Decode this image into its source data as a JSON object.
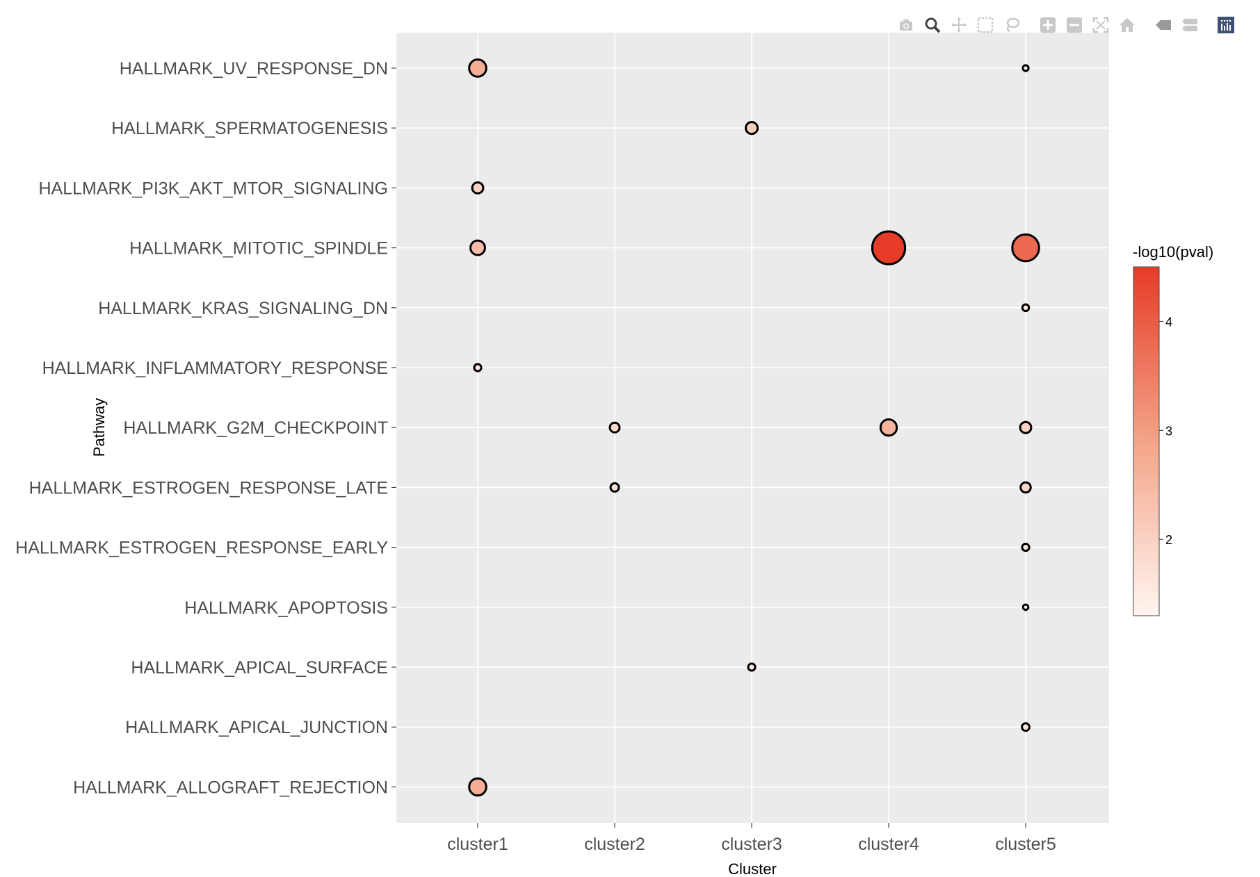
{
  "chart_data": {
    "type": "scatter",
    "subtype": "bubble",
    "xlabel": "Cluster",
    "ylabel": "Pathway",
    "categories_x": [
      "cluster1",
      "cluster2",
      "cluster3",
      "cluster4",
      "cluster5"
    ],
    "categories_y": [
      "HALLMARK_UV_RESPONSE_DN",
      "HALLMARK_SPERMATOGENESIS",
      "HALLMARK_PI3K_AKT_MTOR_SIGNALING",
      "HALLMARK_MITOTIC_SPINDLE",
      "HALLMARK_KRAS_SIGNALING_DN",
      "HALLMARK_INFLAMMATORY_RESPONSE",
      "HALLMARK_G2M_CHECKPOINT",
      "HALLMARK_ESTROGEN_RESPONSE_LATE",
      "HALLMARK_ESTROGEN_RESPONSE_EARLY",
      "HALLMARK_APOPTOSIS",
      "HALLMARK_APICAL_SURFACE",
      "HALLMARK_APICAL_JUNCTION",
      "HALLMARK_ALLOGRAFT_REJECTION"
    ],
    "points": [
      {
        "cluster": "cluster1",
        "pathway": "HALLMARK_UV_RESPONSE_DN",
        "neglog10p": 2.7
      },
      {
        "cluster": "cluster5",
        "pathway": "HALLMARK_UV_RESPONSE_DN",
        "neglog10p": 1.4
      },
      {
        "cluster": "cluster3",
        "pathway": "HALLMARK_SPERMATOGENESIS",
        "neglog10p": 2.1
      },
      {
        "cluster": "cluster1",
        "pathway": "HALLMARK_PI3K_AKT_MTOR_SIGNALING",
        "neglog10p": 2.0
      },
      {
        "cluster": "cluster1",
        "pathway": "HALLMARK_MITOTIC_SPINDLE",
        "neglog10p": 2.4
      },
      {
        "cluster": "cluster4",
        "pathway": "HALLMARK_MITOTIC_SPINDLE",
        "neglog10p": 4.5
      },
      {
        "cluster": "cluster5",
        "pathway": "HALLMARK_MITOTIC_SPINDLE",
        "neglog10p": 3.8
      },
      {
        "cluster": "cluster5",
        "pathway": "HALLMARK_KRAS_SIGNALING_DN",
        "neglog10p": 1.5
      },
      {
        "cluster": "cluster1",
        "pathway": "HALLMARK_INFLAMMATORY_RESPONSE",
        "neglog10p": 1.55
      },
      {
        "cluster": "cluster2",
        "pathway": "HALLMARK_G2M_CHECKPOINT",
        "neglog10p": 1.85
      },
      {
        "cluster": "cluster4",
        "pathway": "HALLMARK_G2M_CHECKPOINT",
        "neglog10p": 2.6
      },
      {
        "cluster": "cluster5",
        "pathway": "HALLMARK_G2M_CHECKPOINT",
        "neglog10p": 2.0
      },
      {
        "cluster": "cluster2",
        "pathway": "HALLMARK_ESTROGEN_RESPONSE_LATE",
        "neglog10p": 1.7
      },
      {
        "cluster": "cluster5",
        "pathway": "HALLMARK_ESTROGEN_RESPONSE_LATE",
        "neglog10p": 1.9
      },
      {
        "cluster": "cluster5",
        "pathway": "HALLMARK_ESTROGEN_RESPONSE_EARLY",
        "neglog10p": 1.55
      },
      {
        "cluster": "cluster5",
        "pathway": "HALLMARK_APOPTOSIS",
        "neglog10p": 1.35
      },
      {
        "cluster": "cluster3",
        "pathway": "HALLMARK_APICAL_SURFACE",
        "neglog10p": 1.55
      },
      {
        "cluster": "cluster5",
        "pathway": "HALLMARK_APICAL_JUNCTION",
        "neglog10p": 1.6
      },
      {
        "cluster": "cluster1",
        "pathway": "HALLMARK_ALLOGRAFT_REJECTION",
        "neglog10p": 2.7
      }
    ],
    "colorbar": {
      "title": "-log10(pval)",
      "min": 1.3,
      "max": 4.5,
      "ticks": [
        2,
        3,
        4
      ],
      "color_low": "#fff5f0",
      "color_high": "#e63b27"
    },
    "grid": true,
    "legend": "right"
  },
  "modebar": {
    "buttons": [
      "camera-icon",
      "zoom-icon",
      "pan-icon",
      "box-select-icon",
      "lasso-icon",
      "zoom-in-icon",
      "zoom-out-icon",
      "autoscale-icon",
      "reset-axes-icon",
      "hover-closest-icon",
      "hover-compare-icon",
      "plotly-logo-icon"
    ]
  }
}
